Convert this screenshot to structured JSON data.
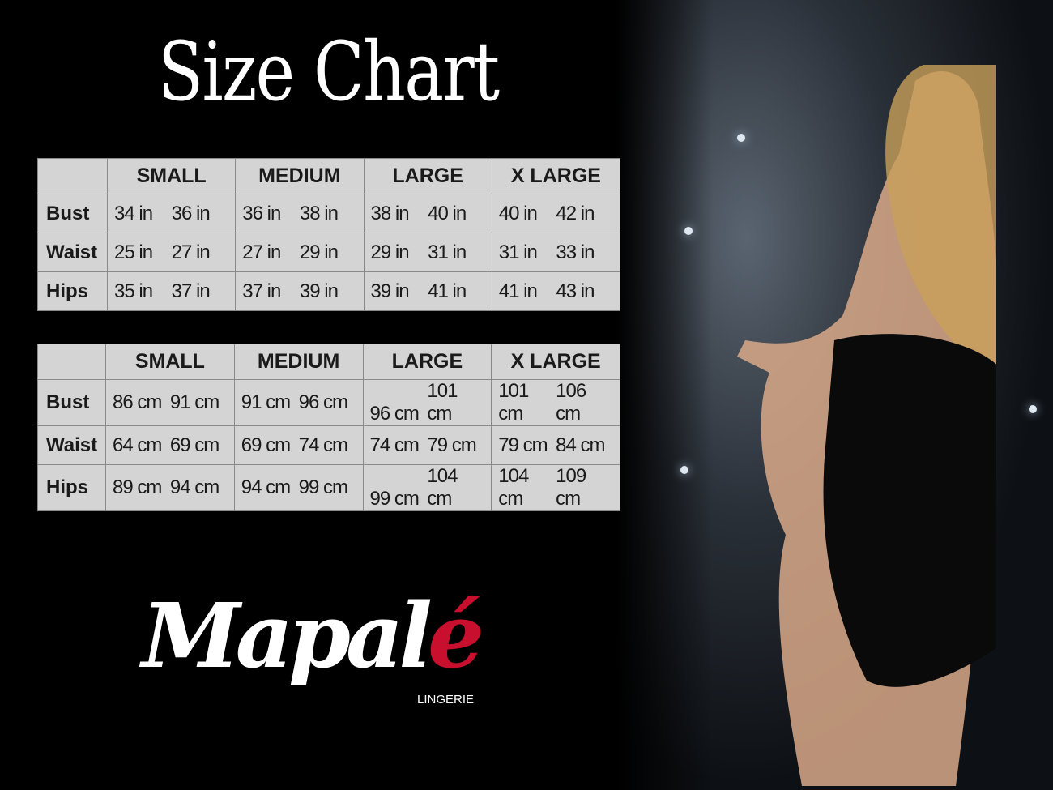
{
  "title": "Size Chart",
  "sizes": [
    "SMALL",
    "MEDIUM",
    "LARGE",
    "X LARGE"
  ],
  "inches": {
    "rows": [
      {
        "label": "Bust",
        "values": [
          "34 in",
          "36 in",
          "36 in",
          "38 in",
          "38 in",
          "40 in",
          "40 in",
          "42 in"
        ]
      },
      {
        "label": "Waist",
        "values": [
          "25 in",
          "27 in",
          "27 in",
          "29 in",
          "29 in",
          "31 in",
          "31 in",
          "33 in"
        ]
      },
      {
        "label": "Hips",
        "values": [
          "35 in",
          "37 in",
          "37 in",
          "39 in",
          "39 in",
          "41 in",
          "41 in",
          "43 in"
        ]
      }
    ]
  },
  "cm": {
    "rows": [
      {
        "label": "Bust",
        "values": [
          "86 cm",
          "91 cm",
          "91 cm",
          "96 cm",
          "96 cm",
          "101 cm",
          "101 cm",
          "106 cm"
        ]
      },
      {
        "label": "Waist",
        "values": [
          "64 cm",
          "69 cm",
          "69 cm",
          "74 cm",
          "74 cm",
          "79  cm",
          "79 cm",
          "84 cm"
        ]
      },
      {
        "label": "Hips",
        "values": [
          "89 cm",
          "94 cm",
          "94 cm",
          "99 cm",
          "99 cm",
          "104 cm",
          "104 cm",
          "109 cm"
        ]
      }
    ]
  },
  "logo": {
    "text_main": "Mapal",
    "text_accent": "é",
    "subtitle": "LINGERIE",
    "accent_color": "#c8102e"
  }
}
